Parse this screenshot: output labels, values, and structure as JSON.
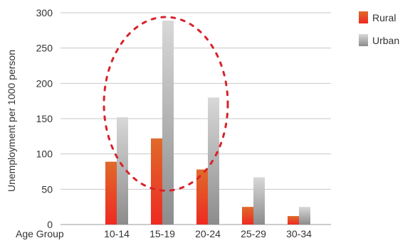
{
  "chart_data": {
    "type": "bar",
    "title": "",
    "xlabel": "Age Group",
    "ylabel": "Unemployment per 1000 person",
    "categories": [
      "10-14",
      "15-19",
      "20-24",
      "25-29",
      "30-34"
    ],
    "series": [
      {
        "name": "Rural",
        "values": [
          89,
          122,
          78,
          25,
          12
        ],
        "color": "#e8452a"
      },
      {
        "name": "Urban",
        "values": [
          152,
          289,
          180,
          67,
          25
        ],
        "color": "#b8b8b8"
      }
    ],
    "yticks": [
      0,
      50,
      100,
      150,
      200,
      250,
      300
    ],
    "ylim": [
      0,
      300
    ],
    "grid": true,
    "legend_position": "top-right",
    "annotation": {
      "shape": "dashed-ellipse",
      "color": "#d9222a",
      "covers_categories": [
        "10-14",
        "15-19",
        "20-24"
      ]
    }
  }
}
